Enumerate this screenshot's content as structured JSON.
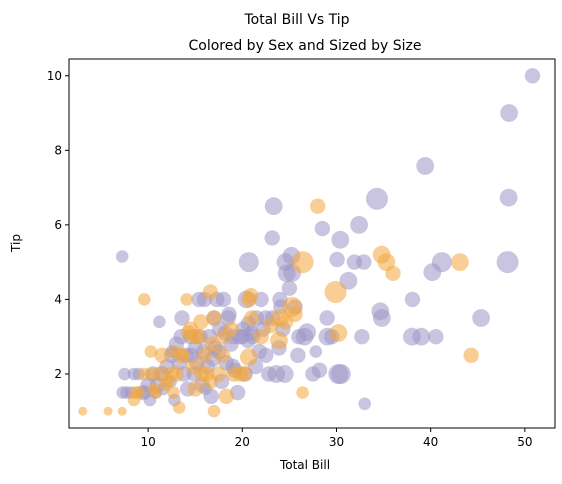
{
  "chart_data": {
    "type": "scatter",
    "suptitle": "Total Bill Vs Tip",
    "title": "Colored by Sex and Sized by Size",
    "xlabel": "Total Bill",
    "ylabel": "Tip",
    "xlim": [
      1.6,
      53.2
    ],
    "ylim": [
      0.55,
      10.45
    ],
    "xticks": [
      10,
      20,
      30,
      40,
      50
    ],
    "yticks": [
      2,
      4,
      6,
      8,
      10
    ],
    "grid": false,
    "legend": "none",
    "colors": {
      "Male": "#9d96c6",
      "Female": "#f2a53c"
    },
    "alpha": 0.55,
    "series": [
      {
        "color_key": "Male",
        "points": [
          [
            50.81,
            10.0,
            3
          ],
          [
            48.33,
            9.0,
            4
          ],
          [
            39.42,
            7.58,
            4
          ],
          [
            48.27,
            6.73,
            4
          ],
          [
            34.3,
            6.7,
            6
          ],
          [
            23.33,
            6.5,
            4
          ],
          [
            32.4,
            6.0,
            4
          ],
          [
            30.4,
            5.6,
            4
          ],
          [
            28.5,
            5.9,
            3
          ],
          [
            20.69,
            5.0,
            5
          ],
          [
            41.19,
            5.0,
            5
          ],
          [
            48.17,
            5.0,
            6
          ],
          [
            30.06,
            5.07,
            3
          ],
          [
            25.21,
            5.17,
            4
          ],
          [
            7.25,
            5.15,
            2
          ],
          [
            23.17,
            5.65,
            3
          ],
          [
            24.59,
            5.0,
            4
          ],
          [
            31.9,
            5.0,
            3
          ],
          [
            32.9,
            5.0,
            3
          ],
          [
            40.17,
            4.73,
            4
          ],
          [
            24.71,
            4.7,
            4
          ],
          [
            31.27,
            4.5,
            4
          ],
          [
            25.0,
            4.3,
            3
          ],
          [
            16.0,
            4.0,
            3
          ],
          [
            17.29,
            4.0,
            3
          ],
          [
            18.0,
            4.0,
            3
          ],
          [
            20.45,
            4.0,
            4
          ],
          [
            22.0,
            4.0,
            3
          ],
          [
            24.0,
            4.0,
            3
          ],
          [
            29.0,
            3.5,
            3
          ],
          [
            34.65,
            3.68,
            4
          ],
          [
            34.81,
            3.5,
            4
          ],
          [
            38.07,
            4.0,
            3
          ],
          [
            45.35,
            3.5,
            4
          ],
          [
            38.01,
            3.0,
            4
          ],
          [
            39.0,
            3.0,
            4
          ],
          [
            40.55,
            3.0,
            3
          ],
          [
            30.46,
            2.0,
            5
          ],
          [
            29.03,
            3.0,
            4
          ],
          [
            26.88,
            3.12,
            4
          ],
          [
            25.29,
            4.71,
            4
          ],
          [
            22.5,
            3.5,
            3
          ],
          [
            21.5,
            3.5,
            3
          ],
          [
            20.65,
            3.35,
            3
          ],
          [
            20.0,
            3.0,
            3
          ],
          [
            19.0,
            3.0,
            3
          ],
          [
            18.5,
            3.5,
            3
          ],
          [
            17.0,
            3.5,
            3
          ],
          [
            16.5,
            3.0,
            3
          ],
          [
            15.5,
            3.0,
            3
          ],
          [
            14.5,
            3.0,
            3
          ],
          [
            13.5,
            3.0,
            3
          ],
          [
            12.5,
            2.5,
            3
          ],
          [
            11.5,
            2.0,
            3
          ],
          [
            10.5,
            2.0,
            3
          ],
          [
            10.0,
            1.7,
            3
          ],
          [
            9.5,
            1.5,
            3
          ],
          [
            8.5,
            2.0,
            2
          ],
          [
            7.5,
            2.0,
            2
          ],
          [
            7.7,
            1.5,
            2
          ],
          [
            11.2,
            3.4,
            2
          ],
          [
            12.5,
            2.6,
            2
          ],
          [
            13.0,
            2.8,
            3
          ],
          [
            14.0,
            2.5,
            3
          ],
          [
            15.0,
            2.7,
            3
          ],
          [
            16.3,
            2.2,
            3
          ],
          [
            17.5,
            2.6,
            3
          ],
          [
            18.3,
            2.3,
            3
          ],
          [
            19.2,
            2.1,
            3
          ],
          [
            20.3,
            2.0,
            3
          ],
          [
            21.0,
            3.1,
            3
          ],
          [
            21.8,
            2.6,
            3
          ],
          [
            22.8,
            2.0,
            3
          ],
          [
            23.6,
            2.0,
            4
          ],
          [
            24.5,
            2.0,
            4
          ],
          [
            25.9,
            2.5,
            3
          ],
          [
            26.6,
            3.0,
            4
          ],
          [
            27.5,
            2.0,
            3
          ],
          [
            28.2,
            2.1,
            3
          ],
          [
            30.2,
            2.0,
            5
          ],
          [
            32.7,
            3.0,
            3
          ],
          [
            33.0,
            1.2,
            2
          ],
          [
            12.8,
            1.3,
            2
          ],
          [
            10.2,
            1.3,
            2
          ],
          [
            9.6,
            1.5,
            2
          ],
          [
            15.7,
            1.7,
            3
          ],
          [
            17.8,
            1.8,
            3
          ],
          [
            19.5,
            1.5,
            3
          ],
          [
            14.2,
            1.6,
            3
          ],
          [
            16.7,
            1.4,
            3
          ],
          [
            11.0,
            1.7,
            3
          ],
          [
            13.8,
            2.0,
            3
          ],
          [
            15.2,
            2.3,
            3
          ],
          [
            16.9,
            2.4,
            3
          ],
          [
            18.8,
            2.8,
            3
          ],
          [
            20.1,
            3.2,
            3
          ],
          [
            21.1,
            3.0,
            3
          ],
          [
            22.2,
            3.2,
            3
          ],
          [
            23.2,
            3.5,
            3
          ],
          [
            24.1,
            3.8,
            3
          ],
          [
            25.6,
            3.8,
            3
          ],
          [
            12.0,
            2.2,
            3
          ],
          [
            13.3,
            2.3,
            3
          ],
          [
            14.6,
            2.5,
            3
          ],
          [
            15.9,
            2.6,
            3
          ],
          [
            17.1,
            2.7,
            3
          ],
          [
            18.2,
            3.1,
            3
          ],
          [
            19.7,
            3.0,
            3
          ],
          [
            20.6,
            2.9,
            3
          ],
          [
            22.5,
            2.5,
            3
          ],
          [
            24.3,
            3.2,
            3
          ],
          [
            26.0,
            3.0,
            3
          ],
          [
            9.0,
            2.0,
            2
          ],
          [
            8.2,
            1.5,
            2
          ],
          [
            7.3,
            1.5,
            2
          ],
          [
            27.8,
            2.6,
            2
          ],
          [
            29.5,
            3.0,
            3
          ],
          [
            23.9,
            2.7,
            3
          ],
          [
            13.6,
            3.5,
            3
          ],
          [
            15.4,
            4.0,
            3
          ],
          [
            17.6,
            3.2,
            3
          ],
          [
            19.0,
            2.2,
            3
          ],
          [
            21.4,
            2.2,
            3
          ],
          [
            12.4,
            1.8,
            2
          ],
          [
            11.6,
            1.6,
            2
          ],
          [
            10.8,
            1.5,
            2
          ],
          [
            16.1,
            1.6,
            2
          ],
          [
            14.9,
            2.0,
            3
          ],
          [
            18.6,
            3.6,
            3
          ]
        ]
      },
      {
        "color_key": "Female",
        "points": [
          [
            28.0,
            6.5,
            3
          ],
          [
            34.8,
            5.2,
            4
          ],
          [
            35.3,
            5.0,
            4
          ],
          [
            43.1,
            5.0,
            4
          ],
          [
            26.4,
            5.0,
            6
          ],
          [
            29.9,
            4.2,
            6
          ],
          [
            36.0,
            4.7,
            3
          ],
          [
            25.3,
            3.8,
            5
          ],
          [
            24.0,
            3.5,
            4
          ],
          [
            20.7,
            4.0,
            3
          ],
          [
            23.9,
            2.9,
            4
          ],
          [
            20.7,
            2.45,
            4
          ],
          [
            18.8,
            3.2,
            3
          ],
          [
            17.0,
            3.5,
            3
          ],
          [
            16.6,
            4.2,
            3
          ],
          [
            15.0,
            3.0,
            3
          ],
          [
            14.5,
            3.2,
            3
          ],
          [
            13.5,
            2.5,
            3
          ],
          [
            12.5,
            2.0,
            3
          ],
          [
            11.5,
            2.5,
            3
          ],
          [
            10.3,
            2.6,
            2
          ],
          [
            9.6,
            2.0,
            2
          ],
          [
            8.7,
            1.5,
            2
          ],
          [
            9.6,
            4.0,
            2
          ],
          [
            14.1,
            4.0,
            2
          ],
          [
            15.3,
            3.0,
            3
          ],
          [
            16.0,
            2.5,
            3
          ],
          [
            17.5,
            2.0,
            3
          ],
          [
            18.3,
            1.4,
            3
          ],
          [
            16.6,
            1.8,
            3
          ],
          [
            15.0,
            1.6,
            3
          ],
          [
            13.3,
            1.1,
            2
          ],
          [
            12.7,
            1.5,
            2
          ],
          [
            11.9,
            1.7,
            2
          ],
          [
            10.8,
            1.5,
            2
          ],
          [
            10.4,
            2.0,
            2
          ],
          [
            9.0,
            1.5,
            2
          ],
          [
            8.5,
            1.3,
            2
          ],
          [
            5.75,
            1.0,
            1
          ],
          [
            3.07,
            1.0,
            1
          ],
          [
            7.25,
            1.0,
            1
          ],
          [
            17.0,
            1.0,
            2
          ],
          [
            44.3,
            2.5,
            3
          ],
          [
            26.4,
            1.5,
            2
          ],
          [
            30.2,
            3.1,
            4
          ],
          [
            21.0,
            3.5,
            3
          ],
          [
            22.0,
            3.0,
            3
          ],
          [
            19.8,
            2.0,
            3
          ],
          [
            15.7,
            2.0,
            3
          ],
          [
            16.2,
            2.0,
            3
          ],
          [
            13.0,
            2.0,
            3
          ],
          [
            14.8,
            2.2,
            3
          ],
          [
            12.1,
            1.8,
            2
          ],
          [
            11.3,
            2.0,
            3
          ],
          [
            10.6,
            1.6,
            2
          ],
          [
            17.9,
            2.5,
            3
          ],
          [
            19.1,
            2.0,
            3
          ],
          [
            20.2,
            2.0,
            3
          ],
          [
            23.0,
            3.3,
            3
          ],
          [
            24.6,
            3.4,
            3
          ],
          [
            16.8,
            2.8,
            3
          ],
          [
            18.0,
            3.0,
            3
          ],
          [
            13.8,
            2.5,
            2
          ],
          [
            12.8,
            2.6,
            2
          ],
          [
            15.6,
            3.4,
            3
          ],
          [
            20.9,
            4.1,
            3
          ],
          [
            25.6,
            3.6,
            3
          ],
          [
            14.3,
            3.1,
            3
          ]
        ]
      }
    ]
  }
}
